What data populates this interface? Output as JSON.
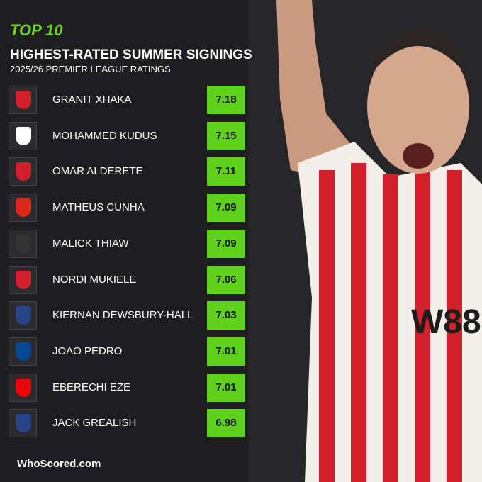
{
  "header": {
    "badge": "TOP 10",
    "title": "HIGHEST-RATED SUMMER SIGNINGS",
    "subtitle": "2025/26 PREMIER LEAGUE RATINGS"
  },
  "rows": [
    {
      "name": "GRANIT XHAKA",
      "rating": 7.18
    },
    {
      "name": "MOHAMMED KUDUS",
      "rating": 7.15
    },
    {
      "name": "OMAR ALDERETE",
      "rating": 7.11
    },
    {
      "name": "MATHEUS CUNHA",
      "rating": 7.09
    },
    {
      "name": "MALICK THIAW",
      "rating": 7.09
    },
    {
      "name": "NORDI MUKIELE",
      "rating": 7.06
    },
    {
      "name": "KIERNAN DEWSBURY-HALL",
      "rating": 7.03
    },
    {
      "name": "JOAO PEDRO",
      "rating": 7.01
    },
    {
      "name": "EBERECHI EZE",
      "rating": 7.01
    },
    {
      "name": "JACK GREALISH",
      "rating": 6.98
    }
  ],
  "footer": {
    "logo": "WhoScored.com"
  }
}
